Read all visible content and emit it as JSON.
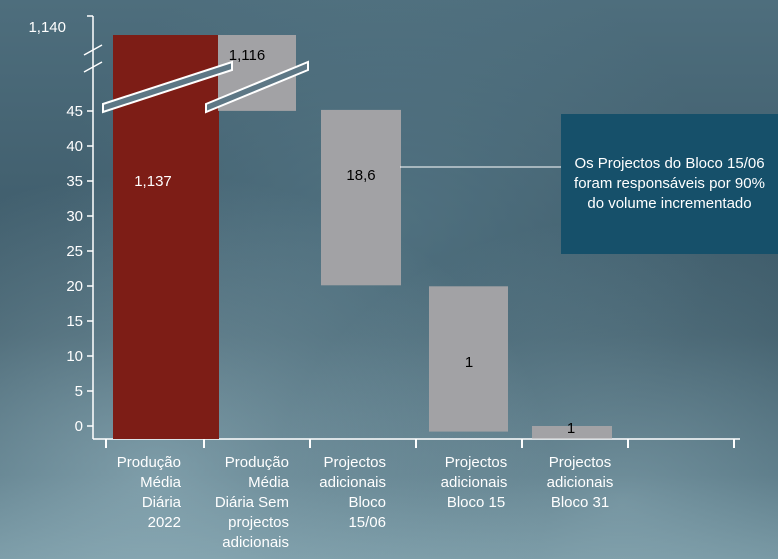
{
  "chart_data": {
    "type": "bar",
    "subtype": "waterfall",
    "categories": [
      "Produção Média Diária 2022",
      "Produção Média Diária Sem projectos adicionais",
      "Projectos adicionais Bloco 15/06",
      "Projectos adicionais Bloco 15",
      "Projectos adicionais Bloco 31"
    ],
    "category_lines": [
      [
        "Produção",
        "Média",
        "Diária",
        "2022"
      ],
      [
        "Produção",
        "Média",
        "Diária Sem",
        "projectos",
        "adicionais"
      ],
      [
        "Projectos",
        "adicionais",
        "Bloco",
        "15/06"
      ],
      [
        "Projectos",
        "adicionais",
        "Bloco 15"
      ],
      [
        "Projectos",
        "adicionais",
        "Bloco 31"
      ]
    ],
    "values": [
      1137,
      1116,
      18.6,
      1,
      1
    ],
    "value_labels": [
      "1,137",
      "1,116",
      "18,6",
      "1",
      "1"
    ],
    "y_ticks": [
      0,
      5,
      10,
      15,
      20,
      25,
      30,
      35,
      40,
      45
    ],
    "y_break_tick": "1,140",
    "axis_break": true,
    "ylim": [
      0,
      45
    ],
    "colors": {
      "total": "#7d1d16",
      "step": "#a2a2a5",
      "callout": "#16506a",
      "axis": "#ffffff"
    },
    "grid": false,
    "legend": "none",
    "callout": "Os Projectos do Bloco 15/06 foram responsáveis por 90% do volume incrementado",
    "title": "",
    "xlabel": "",
    "ylabel": ""
  }
}
